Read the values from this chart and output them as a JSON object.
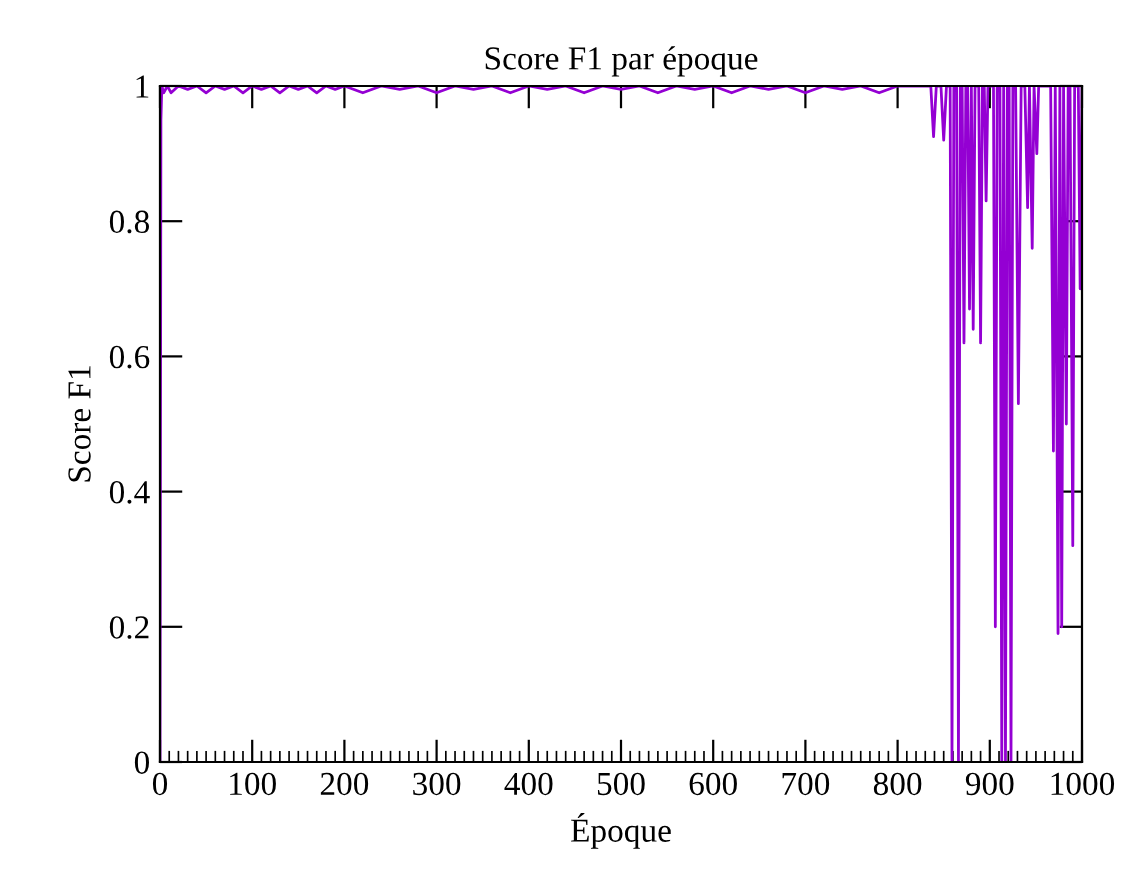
{
  "chart_data": {
    "type": "line",
    "title": "Score F1 par époque",
    "xlabel": "Époque",
    "ylabel": "Score F1",
    "xlim": [
      0,
      1000
    ],
    "ylim": [
      0,
      1
    ],
    "xticks": [
      0,
      100,
      200,
      300,
      400,
      500,
      600,
      700,
      800,
      900,
      1000
    ],
    "yticks": [
      0,
      0.2,
      0.4,
      0.6,
      0.8,
      1
    ],
    "grid": false,
    "legend": false,
    "marker": "none",
    "line_style": "solid",
    "series": [
      {
        "color": "#9400d3",
        "x": [
          0,
          1,
          2,
          4,
          8,
          12,
          20,
          30,
          40,
          50,
          60,
          70,
          80,
          90,
          100,
          110,
          120,
          130,
          140,
          150,
          160,
          170,
          180,
          190,
          200,
          220,
          240,
          260,
          280,
          300,
          320,
          340,
          360,
          380,
          400,
          420,
          440,
          460,
          480,
          500,
          520,
          540,
          560,
          580,
          600,
          620,
          640,
          660,
          680,
          700,
          720,
          740,
          760,
          780,
          800,
          820,
          836,
          839,
          842,
          847,
          850,
          853,
          857,
          859,
          861,
          864,
          866,
          868,
          870,
          872,
          874,
          876,
          878,
          880,
          882,
          884,
          886,
          888,
          890,
          892,
          894,
          896,
          898,
          902,
          904,
          906,
          908,
          911,
          913,
          915,
          917,
          919,
          921,
          923,
          925,
          928,
          931,
          934,
          938,
          941,
          943,
          946,
          948,
          951,
          953,
          957,
          962,
          966,
          969,
          971,
          974,
          976,
          978,
          980,
          983,
          985,
          987,
          990,
          992,
          994,
          996,
          998,
          1000
        ],
        "values": [
          0.0,
          0.95,
          1.0,
          0.99,
          1.0,
          0.99,
          1.0,
          0.995,
          1.0,
          0.99,
          1.0,
          0.995,
          1.0,
          0.99,
          1.0,
          0.995,
          1.0,
          0.99,
          1.0,
          0.995,
          1.0,
          0.99,
          1.0,
          0.995,
          1.0,
          0.99,
          1.0,
          0.995,
          1.0,
          0.99,
          1.0,
          0.995,
          1.0,
          0.99,
          1.0,
          0.995,
          1.0,
          0.99,
          1.0,
          0.995,
          1.0,
          0.99,
          1.0,
          0.995,
          1.0,
          0.99,
          1.0,
          0.995,
          1.0,
          0.99,
          1.0,
          0.995,
          1.0,
          0.99,
          1.0,
          1.0,
          1.0,
          0.925,
          1.0,
          1.0,
          0.92,
          1.0,
          1.0,
          0.0,
          1.0,
          1.0,
          0.0,
          1.0,
          1.0,
          0.62,
          1.0,
          1.0,
          0.67,
          1.0,
          0.64,
          1.0,
          1.0,
          1.0,
          0.62,
          1.0,
          1.0,
          0.83,
          1.0,
          1.0,
          1.0,
          0.2,
          1.0,
          1.0,
          0.0,
          1.0,
          0.0,
          1.0,
          1.0,
          0.0,
          1.0,
          1.0,
          0.53,
          1.0,
          1.0,
          0.82,
          1.0,
          0.76,
          1.0,
          0.9,
          1.0,
          1.0,
          1.0,
          1.0,
          0.46,
          1.0,
          0.19,
          1.0,
          0.2,
          1.0,
          0.5,
          1.0,
          1.0,
          0.32,
          1.0,
          1.0,
          1.0,
          0.7,
          1.0
        ]
      }
    ]
  }
}
